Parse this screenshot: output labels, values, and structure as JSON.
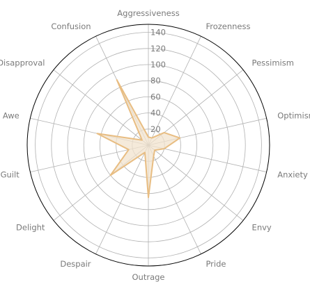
{
  "chart_data": {
    "type": "radar",
    "title": "",
    "categories": [
      "Aggressiveness",
      "Frozenness",
      "Pessimism",
      "Optimism",
      "Anxiety",
      "Envy",
      "Pride",
      "Outrage",
      "Despair",
      "Delight",
      "Guilt",
      "Awe",
      "Disapproval",
      "Confusion"
    ],
    "series": [
      {
        "values": [
          10,
          10,
          25,
          40,
          20,
          10,
          15,
          65,
          10,
          60,
          25,
          65,
          10,
          90
        ]
      }
    ],
    "rlim": [
      0,
      150
    ],
    "rticks": [
      20,
      40,
      60,
      80,
      100,
      120,
      140
    ],
    "grid": true,
    "colors": {
      "line": "#e8bd82",
      "fill": "#f2e3cd",
      "grid": "#b0b0b0",
      "frame": "#000000"
    }
  }
}
